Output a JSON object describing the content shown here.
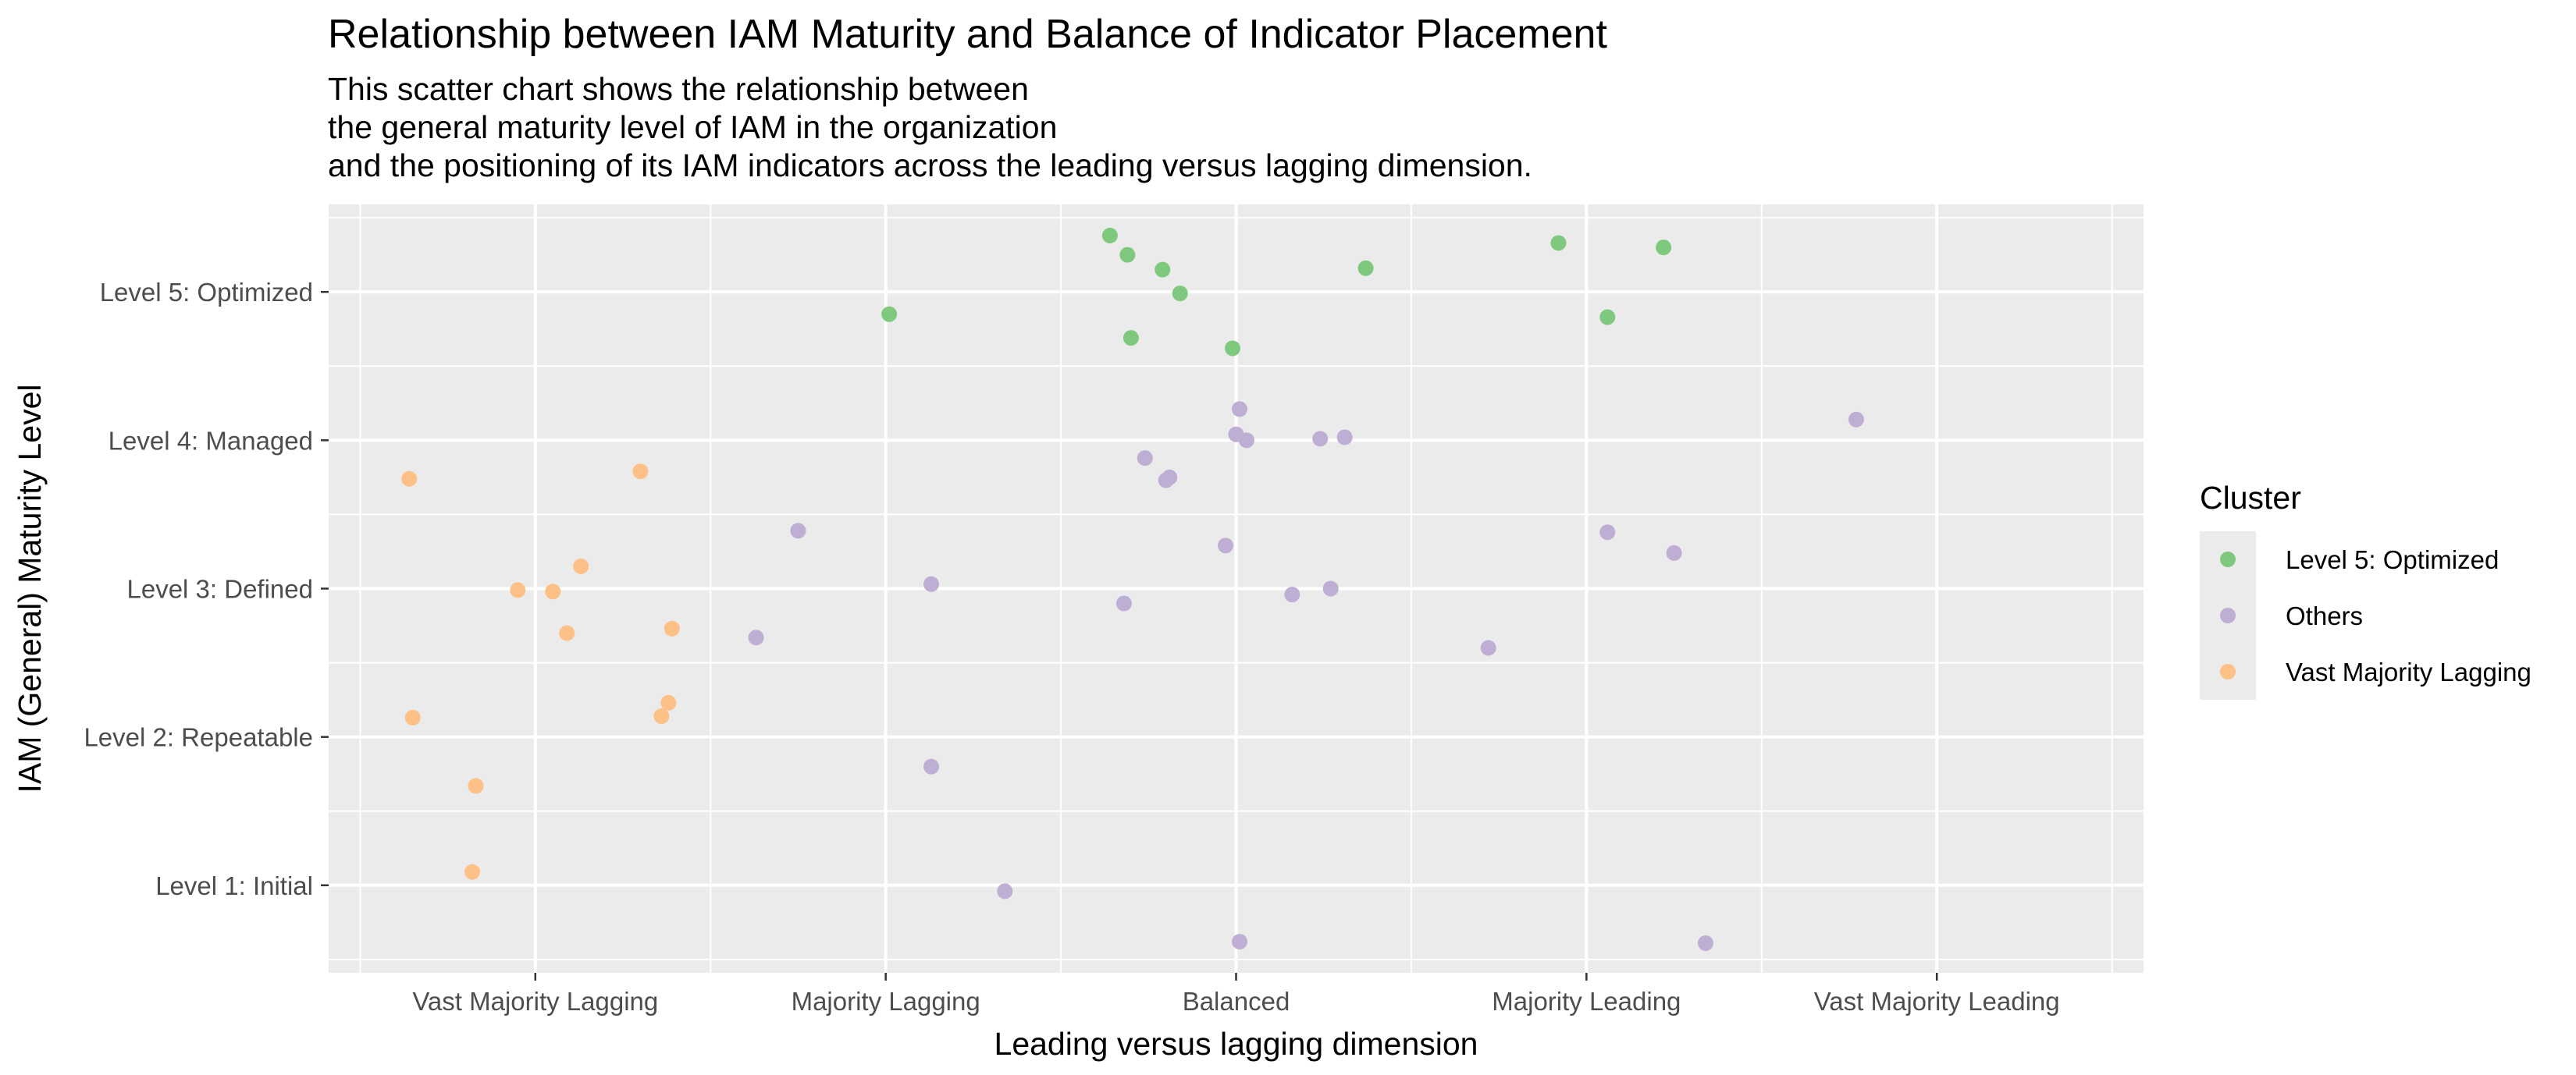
{
  "chart_data": {
    "type": "scatter",
    "title": "Relationship between IAM Maturity and Balance of Indicator Placement",
    "subtitle": [
      "This scatter chart shows the relationship between",
      "the general maturity level of IAM in the organization",
      "and the positioning of its IAM indicators across the leading versus lagging dimension."
    ],
    "xlabel": "Leading versus lagging dimension",
    "ylabel": "IAM (General) Maturity Level",
    "x_categories": [
      "Vast Majority Lagging",
      "Majority Lagging",
      "Balanced",
      "Majority Leading",
      "Vast Majority Leading"
    ],
    "y_categories": [
      "Level 1: Initial",
      "Level 2: Repeatable",
      "Level 3: Defined",
      "Level 4: Managed",
      "Level 5: Optimized"
    ],
    "xlim": [
      0.41,
      5.59
    ],
    "ylim": [
      0.41,
      5.59
    ],
    "grid": true,
    "legend": {
      "title": "Cluster",
      "position": "right",
      "entries": [
        "Level 5: Optimized",
        "Others",
        "Vast Majority Lagging"
      ]
    },
    "colors": {
      "Level 5: Optimized": "#7fc97f",
      "Others": "#beaed4",
      "Vast Majority Lagging": "#fdc086",
      "panel_background": "#ebebeb",
      "gridline": "#ffffff"
    },
    "series": [
      {
        "name": "Level 5: Optimized",
        "points": [
          {
            "x": 2.01,
            "y": 4.85
          },
          {
            "x": 2.64,
            "y": 5.38
          },
          {
            "x": 2.69,
            "y": 5.25
          },
          {
            "x": 2.79,
            "y": 5.15
          },
          {
            "x": 2.84,
            "y": 4.99
          },
          {
            "x": 3.37,
            "y": 5.16
          },
          {
            "x": 3.92,
            "y": 5.33
          },
          {
            "x": 4.22,
            "y": 5.3
          },
          {
            "x": 2.7,
            "y": 4.69
          },
          {
            "x": 2.99,
            "y": 4.62
          },
          {
            "x": 4.06,
            "y": 4.83
          }
        ]
      },
      {
        "name": "Others",
        "points": [
          {
            "x": 3.01,
            "y": 4.21
          },
          {
            "x": 3.0,
            "y": 4.04
          },
          {
            "x": 3.03,
            "y": 4.0
          },
          {
            "x": 3.24,
            "y": 4.01
          },
          {
            "x": 3.31,
            "y": 4.02
          },
          {
            "x": 2.74,
            "y": 3.88
          },
          {
            "x": 2.81,
            "y": 3.75
          },
          {
            "x": 2.8,
            "y": 3.73
          },
          {
            "x": 4.77,
            "y": 4.14
          },
          {
            "x": 1.75,
            "y": 3.39
          },
          {
            "x": 2.97,
            "y": 3.29
          },
          {
            "x": 4.06,
            "y": 3.38
          },
          {
            "x": 4.25,
            "y": 3.24
          },
          {
            "x": 2.13,
            "y": 3.03
          },
          {
            "x": 2.68,
            "y": 2.9
          },
          {
            "x": 3.16,
            "y": 2.96
          },
          {
            "x": 3.27,
            "y": 3.0
          },
          {
            "x": 1.63,
            "y": 2.67
          },
          {
            "x": 3.72,
            "y": 2.6
          },
          {
            "x": 2.13,
            "y": 1.8
          },
          {
            "x": 2.34,
            "y": 0.96
          },
          {
            "x": 3.01,
            "y": 0.62
          },
          {
            "x": 4.34,
            "y": 0.61
          }
        ]
      },
      {
        "name": "Vast Majority Lagging",
        "points": [
          {
            "x": 0.64,
            "y": 3.74
          },
          {
            "x": 1.3,
            "y": 3.79
          },
          {
            "x": 1.13,
            "y": 3.15
          },
          {
            "x": 0.95,
            "y": 2.99
          },
          {
            "x": 1.05,
            "y": 2.98
          },
          {
            "x": 1.09,
            "y": 2.7
          },
          {
            "x": 1.39,
            "y": 2.73
          },
          {
            "x": 0.65,
            "y": 2.13
          },
          {
            "x": 1.36,
            "y": 2.14
          },
          {
            "x": 1.38,
            "y": 2.23
          },
          {
            "x": 0.83,
            "y": 1.67
          },
          {
            "x": 0.82,
            "y": 1.09
          }
        ]
      }
    ]
  }
}
